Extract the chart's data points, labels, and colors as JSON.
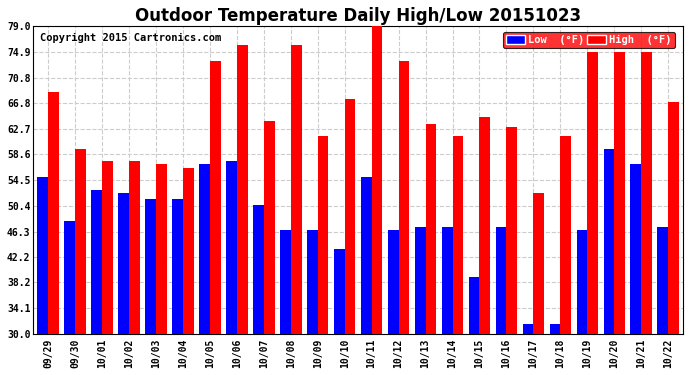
{
  "title": "Outdoor Temperature Daily High/Low 20151023",
  "copyright": "Copyright 2015 Cartronics.com",
  "legend_low": "Low  (°F)",
  "legend_high": "High  (°F)",
  "dates": [
    "09/29",
    "09/30",
    "10/01",
    "10/02",
    "10/03",
    "10/04",
    "10/05",
    "10/06",
    "10/07",
    "10/08",
    "10/09",
    "10/10",
    "10/11",
    "10/12",
    "10/13",
    "10/14",
    "10/15",
    "10/16",
    "10/17",
    "10/18",
    "10/19",
    "10/20",
    "10/21",
    "10/22"
  ],
  "high": [
    68.5,
    59.5,
    57.5,
    57.5,
    57.0,
    56.5,
    73.5,
    76.0,
    64.0,
    76.0,
    61.5,
    67.5,
    79.5,
    73.5,
    63.5,
    61.5,
    64.5,
    63.0,
    52.5,
    61.5,
    75.0,
    75.0,
    75.0,
    67.0
  ],
  "low": [
    55.0,
    48.0,
    53.0,
    52.5,
    51.5,
    51.5,
    57.0,
    57.5,
    50.5,
    46.5,
    46.5,
    43.5,
    55.0,
    46.5,
    47.0,
    47.0,
    39.0,
    47.0,
    31.5,
    31.5,
    46.5,
    59.5,
    57.0,
    47.0
  ],
  "bar_width": 0.4,
  "ylim_min": 30.0,
  "ylim_max": 79.0,
  "yticks": [
    30.0,
    34.1,
    38.2,
    42.2,
    46.3,
    50.4,
    54.5,
    58.6,
    62.7,
    66.8,
    70.8,
    74.9,
    79.0
  ],
  "high_color": "#ff0000",
  "low_color": "#0000ff",
  "bg_color": "#ffffff",
  "plot_bg_color": "#ffffff",
  "grid_color": "#cccccc",
  "title_fontsize": 12,
  "tick_fontsize": 7,
  "copyright_fontsize": 7.5
}
